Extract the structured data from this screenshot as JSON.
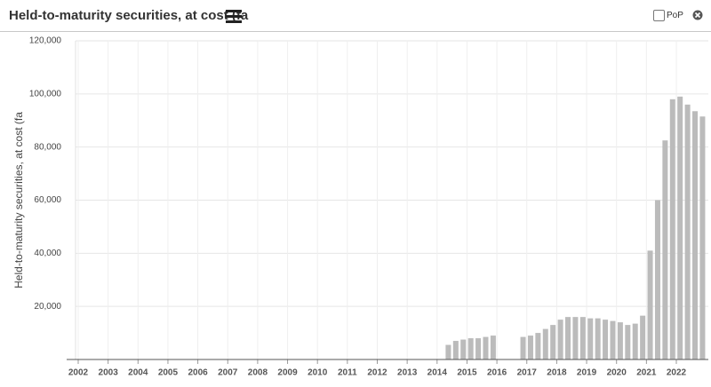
{
  "header": {
    "checkbox_label": "PoP"
  },
  "chart_data": {
    "type": "bar",
    "title": "Held-to-maturity securities, at cost (fa",
    "y_label": "Held-to-maturity securities, at cost (fa",
    "color": "#bbbbbb",
    "grid": true,
    "ylim": [
      0,
      120000
    ],
    "yticks": [
      {
        "value": 20000,
        "label": "20,000"
      },
      {
        "value": 40000,
        "label": "40,000"
      },
      {
        "value": 60000,
        "label": "60,000"
      },
      {
        "value": 80000,
        "label": "80,000"
      },
      {
        "value": 100000,
        "label": "100,000"
      },
      {
        "value": 120000,
        "label": "120,000"
      }
    ],
    "categories": [
      "2002",
      null,
      null,
      null,
      "2003",
      null,
      null,
      null,
      "2004",
      null,
      null,
      null,
      "2005",
      null,
      null,
      null,
      "2006",
      null,
      null,
      null,
      "2007",
      null,
      null,
      null,
      "2008",
      null,
      null,
      null,
      "2009",
      null,
      null,
      null,
      "2010",
      null,
      null,
      null,
      "2011",
      null,
      null,
      null,
      "2012",
      null,
      null,
      null,
      "2013",
      null,
      null,
      null,
      "2014",
      null,
      null,
      null,
      "2015",
      null,
      null,
      null,
      "2016",
      null,
      null,
      null,
      "2017",
      null,
      null,
      null,
      "2018",
      null,
      null,
      null,
      "2019",
      null,
      null,
      null,
      "2020",
      null,
      null,
      null,
      "2021",
      null,
      null,
      null,
      "2022",
      null,
      null,
      null
    ],
    "values": [
      null,
      null,
      null,
      null,
      null,
      null,
      null,
      null,
      null,
      null,
      null,
      null,
      null,
      null,
      null,
      null,
      null,
      null,
      null,
      null,
      null,
      null,
      null,
      null,
      null,
      null,
      null,
      null,
      null,
      null,
      null,
      null,
      null,
      null,
      null,
      null,
      null,
      null,
      null,
      null,
      null,
      null,
      null,
      null,
      null,
      null,
      null,
      null,
      null,
      5500,
      7000,
      7500,
      8000,
      8000,
      8500,
      9000,
      null,
      null,
      null,
      8500,
      9000,
      10000,
      11500,
      13000,
      15000,
      16000,
      16000,
      16000,
      15500,
      15500,
      15000,
      14500,
      14000,
      13000,
      13500,
      16500,
      41000,
      60000,
      82500,
      98000,
      99000,
      96000,
      93500,
      91500
    ]
  }
}
